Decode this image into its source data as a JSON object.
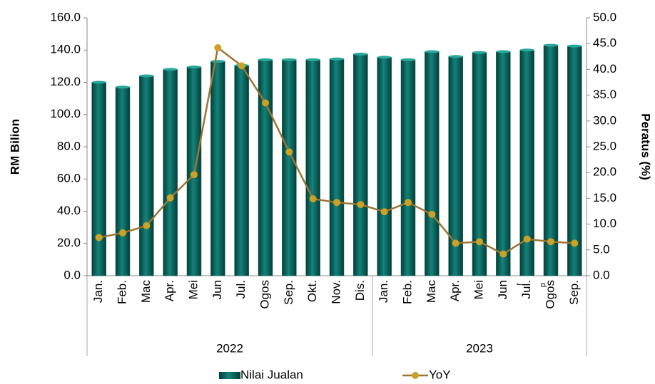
{
  "chart_data": {
    "type": "bar-line",
    "categories": [
      "Jan.",
      "Feb.",
      "Mac",
      "Apr.",
      "Mei",
      "Jun",
      "Jul.",
      "Ogos",
      "Sep.",
      "Okt.",
      "Nov.",
      "Dis.",
      "Jan.",
      "Feb.",
      "Mac",
      "Apr.",
      "Mei",
      "Jun",
      "Jul.",
      "Ogos",
      "Sep."
    ],
    "category_notes": [
      null,
      null,
      null,
      null,
      null,
      null,
      null,
      null,
      null,
      null,
      null,
      null,
      null,
      null,
      null,
      null,
      null,
      null,
      "r",
      "p",
      null
    ],
    "groups": [
      {
        "label": "2022",
        "count": 12
      },
      {
        "label": "2023",
        "count": 9
      }
    ],
    "ylabel": "RM Bilion",
    "y2label": "Peratus (%)",
    "series": [
      {
        "name": "Nilai Jualan",
        "color": "#0f6e66",
        "values": [
          120,
          117,
          124,
          128,
          129.5,
          133,
          130.5,
          134,
          134,
          134,
          134.5,
          137.5,
          135.5,
          134,
          139,
          136,
          138.5,
          139,
          140,
          143,
          142.5
        ]
      },
      {
        "name": "YoY",
        "color": "#9c7434",
        "marker_color": "#c9a227",
        "axis": "y2",
        "values": [
          7.4,
          8.3,
          9.7,
          15.1,
          19.6,
          44.2,
          40.7,
          33.5,
          24.0,
          14.9,
          14.2,
          13.8,
          12.4,
          14.2,
          11.9,
          6.3,
          6.6,
          4.2,
          7.1,
          6.6,
          6.3
        ]
      }
    ],
    "ylim": [
      0,
      160
    ],
    "yticks": [
      {
        "value": 0,
        "label": "0.0"
      },
      {
        "value": 20,
        "label": "20.0"
      },
      {
        "value": 40,
        "label": "40.0"
      },
      {
        "value": 60,
        "label": "60.0"
      },
      {
        "value": 80,
        "label": "80.0"
      },
      {
        "value": 100,
        "label": "100.0"
      },
      {
        "value": 120,
        "label": "120.0"
      },
      {
        "value": 140,
        "label": "140.0"
      },
      {
        "value": 160,
        "label": "160.0"
      }
    ],
    "y2lim": [
      0,
      50
    ],
    "y2ticks": [
      {
        "value": 0,
        "label": "0.0"
      },
      {
        "value": 5,
        "label": "5.0"
      },
      {
        "value": 10,
        "label": "10.0"
      },
      {
        "value": 15,
        "label": "15.0"
      },
      {
        "value": 20,
        "label": "20.0"
      },
      {
        "value": 25,
        "label": "25.0"
      },
      {
        "value": 30,
        "label": "30.0"
      },
      {
        "value": 35,
        "label": "35.0"
      },
      {
        "value": 40,
        "label": "40.0"
      },
      {
        "value": 45,
        "label": "45.0"
      },
      {
        "value": 50,
        "label": "50.0"
      }
    ],
    "legend": "bottom"
  }
}
